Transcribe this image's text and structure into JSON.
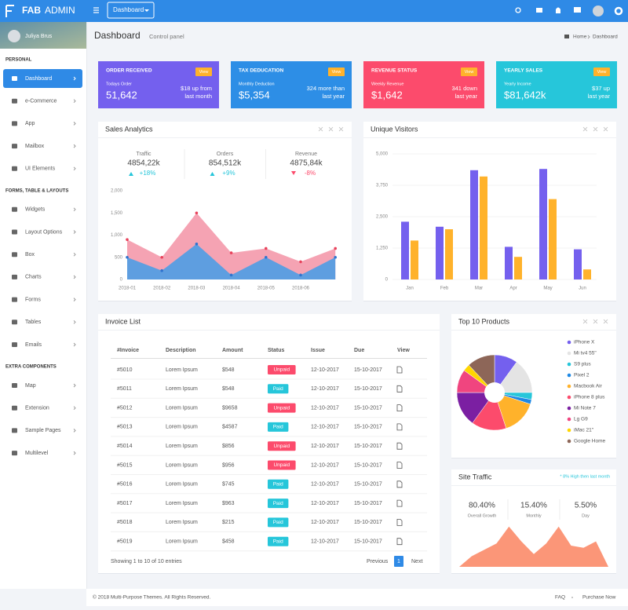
{
  "brand": {
    "name": "FAB",
    "suffix": "ADMIN"
  },
  "topbar": {
    "menu": "Dashboard"
  },
  "user": {
    "name": "Juliya Brus"
  },
  "sidebar": [
    {
      "title": "PERSONAL",
      "items": [
        "Dashboard",
        "e-Commerce",
        "App",
        "Mailbox",
        "UI Elements"
      ]
    },
    {
      "title": "FORMS, TABLE & LAYOUTS",
      "items": [
        "Widgets",
        "Layout Options",
        "Box",
        "Charts",
        "Forms",
        "Tables",
        "Emails"
      ]
    },
    {
      "title": "EXTRA COMPONENTS",
      "items": [
        "Map",
        "Extension",
        "Sample Pages",
        "Multilevel"
      ]
    }
  ],
  "header": {
    "title": "Dashboard",
    "subtitle": "Control panel",
    "breadcrumb": [
      "Home",
      "Dashboard"
    ]
  },
  "cards": [
    {
      "title": "ORDER RECEIVED",
      "subtitle": "Todays Order",
      "value": "51,642",
      "note": [
        "$18 up from",
        "last month"
      ],
      "button": "View",
      "color": "#7460ee"
    },
    {
      "title": "TAX DEDUCATION",
      "subtitle": "Monthly Deduction",
      "value": "$5,354",
      "note": [
        "324 more than",
        "last year"
      ],
      "button": "View",
      "color": "#2d8ee6"
    },
    {
      "title": "REVENUE STATUS",
      "subtitle": "Weekly Revenue",
      "value": "$1,642",
      "note": [
        "341 down",
        "last year"
      ],
      "button": "View",
      "color": "#fc4b6c"
    },
    {
      "title": "YEARLY SALES",
      "subtitle": "Yearly Income",
      "value": "$81,642k",
      "note": [
        "$37 up",
        "last year"
      ],
      "button": "View",
      "color": "#26c6da"
    }
  ],
  "sales": {
    "title": "Sales Analytics",
    "stats": [
      {
        "label": "Traffic",
        "value": "4854,22k",
        "change": "+18%",
        "color": "#26c6da"
      },
      {
        "label": "Orders",
        "value": "854,512k",
        "change": "+9%",
        "color": "#26c6da"
      },
      {
        "label": "Revenue",
        "value": "4875,84k",
        "change": "-8%",
        "color": "#fc4b6c"
      }
    ],
    "chart_data": {
      "type": "area",
      "categories": [
        "2018-01",
        "2018-02",
        "2018-03",
        "2018-04",
        "2018-05",
        "2018-06",
        null
      ],
      "series": [
        {
          "color": "#f5a3b3",
          "values": [
            900,
            500,
            1500,
            600,
            700,
            400,
            700
          ]
        },
        {
          "color": "#5e9ee0",
          "values": [
            500,
            200,
            800,
            100,
            500,
            100,
            500
          ]
        }
      ],
      "ylim": [
        0,
        2000
      ],
      "yticks": [
        0,
        500,
        {
          "value": 1000,
          "label": "1,000"
        },
        {
          "value": 1500,
          "label": "1,500"
        },
        {
          "value": 2000,
          "label": "2,000"
        }
      ],
      "grid": false
    }
  },
  "visitors": {
    "title": "Unique Visitors",
    "chart_data": {
      "type": "bar",
      "categories": [
        "Jan",
        "Feb",
        "Mar",
        "Apr",
        "May",
        "Jun"
      ],
      "series": [
        {
          "color": "#7460ee",
          "values": [
            2300,
            2100,
            4350,
            1300,
            4400,
            1200
          ]
        },
        {
          "color": "#ffb22b",
          "values": [
            1550,
            2000,
            4100,
            900,
            3200,
            400
          ]
        }
      ],
      "ylim": [
        0,
        5000
      ],
      "yticks": [
        0,
        {
          "value": 1250,
          "label": "1,250"
        },
        {
          "value": 2500,
          "label": "2,500"
        },
        {
          "value": 3750,
          "label": "3,750"
        },
        {
          "value": 5000,
          "label": "5,000"
        }
      ],
      "grid": true
    }
  },
  "invoice": {
    "title": "Invoice List",
    "columns": [
      "#Invoice",
      "Description",
      "Amount",
      "Status",
      "Issue",
      "Due",
      "View"
    ],
    "rows": [
      [
        "#5010",
        "Lorem Ipsum",
        "$548",
        "Unpaid",
        "12-10-2017",
        "15-10-2017"
      ],
      [
        "#5011",
        "Lorem Ipsum",
        "$548",
        "Paid",
        "12-10-2017",
        "15-10-2017"
      ],
      [
        "#5012",
        "Lorem Ipsum",
        "$9658",
        "Unpaid",
        "12-10-2017",
        "15-10-2017"
      ],
      [
        "#5013",
        "Lorem Ipsum",
        "$4587",
        "Paid",
        "12-10-2017",
        "15-10-2017"
      ],
      [
        "#5014",
        "Lorem Ipsum",
        "$856",
        "Unpaid",
        "12-10-2017",
        "15-10-2017"
      ],
      [
        "#5015",
        "Lorem Ipsum",
        "$956",
        "Unpaid",
        "12-10-2017",
        "15-10-2017"
      ],
      [
        "#5016",
        "Lorem Ipsum",
        "$745",
        "Paid",
        "12-10-2017",
        "15-10-2017"
      ],
      [
        "#5017",
        "Lorem Ipsum",
        "$963",
        "Paid",
        "12-10-2017",
        "15-10-2017"
      ],
      [
        "#5018",
        "Lorem Ipsum",
        "$215",
        "Paid",
        "12-10-2017",
        "15-10-2017"
      ],
      [
        "#5019",
        "Lorem Ipsum",
        "$458",
        "Paid",
        "12-10-2017",
        "15-10-2017"
      ]
    ],
    "badge_colors": {
      "Unpaid": "#fc4b6c",
      "Paid": "#26c6da"
    },
    "info": "Showing 1 to 10 of 10 entries",
    "pagination": [
      "Previous",
      "1",
      "Next"
    ]
  },
  "products": {
    "title": "Top 10 Products",
    "chart_data": {
      "type": "pie",
      "categories": [
        "iPhone X",
        "Mi tv4 55\"",
        "S9 plus",
        "Pixel 2",
        "Macbook Air",
        "iPhone 8 plus",
        "Mi Note 7",
        "Lg G9",
        "iMac 21\"",
        "Google Home"
      ],
      "values": [
        10,
        15,
        3,
        2,
        15,
        15,
        15,
        10,
        3,
        12
      ],
      "colors": [
        "#7460ee",
        "#e4e4e4",
        "#26c6da",
        "#1e88e5",
        "#ffb22b",
        "#fc4b6c",
        "#7b1fa2",
        "#f0457f",
        "#ffd600",
        "#8d6658"
      ]
    }
  },
  "traffic": {
    "title": "Site Traffic",
    "note": "* 8% High then last month",
    "stats": [
      {
        "value": "80.40%",
        "label": "Overall Growth"
      },
      {
        "value": "15.40%",
        "label": "Monthly"
      },
      {
        "value": "5.50%",
        "label": "Day"
      }
    ],
    "chart_data": {
      "type": "area",
      "values": [
        0,
        25,
        40,
        55,
        95,
        60,
        30,
        55,
        95,
        50,
        45,
        60,
        0
      ],
      "ylim": [
        0,
        100
      ],
      "color": "#fb9678"
    }
  },
  "footer": {
    "copyright": "© 2018 Multi-Purpose Themes. All Rights Reserved.",
    "links": [
      "FAQ",
      "Purchase Now"
    ]
  }
}
